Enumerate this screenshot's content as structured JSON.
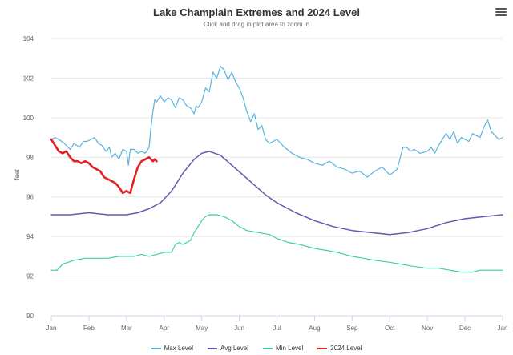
{
  "chart_data": {
    "type": "line",
    "title": "Lake Champlain Extremes and 2024 Level",
    "subtitle": "Click and drag in plot area to zoom in",
    "ylabel": "feet",
    "ylim": [
      90,
      104
    ],
    "yticks": [
      90,
      92,
      94,
      96,
      98,
      100,
      102,
      104
    ],
    "x_tick_labels": [
      "Jan",
      "Feb",
      "Mar",
      "Apr",
      "May",
      "Jun",
      "Jul",
      "Aug",
      "Sep",
      "Oct",
      "Nov",
      "Dec",
      "Jan"
    ],
    "xlim": [
      0,
      12
    ],
    "legend_position": "bottom",
    "series": [
      {
        "name": "Max Level",
        "color": "#5ab4de",
        "width": 1.2,
        "x": [
          0.0,
          0.1,
          0.2,
          0.35,
          0.5,
          0.6,
          0.75,
          0.85,
          0.95,
          1.05,
          1.15,
          1.25,
          1.35,
          1.45,
          1.55,
          1.6,
          1.7,
          1.8,
          1.9,
          2.0,
          2.05,
          2.1,
          2.2,
          2.3,
          2.4,
          2.5,
          2.6,
          2.65,
          2.7,
          2.75,
          2.8,
          2.9,
          3.0,
          3.1,
          3.2,
          3.3,
          3.4,
          3.5,
          3.6,
          3.7,
          3.8,
          3.85,
          3.9,
          4.0,
          4.1,
          4.2,
          4.3,
          4.4,
          4.5,
          4.6,
          4.7,
          4.8,
          4.9,
          5.0,
          5.1,
          5.2,
          5.3,
          5.4,
          5.5,
          5.6,
          5.7,
          5.8,
          5.9,
          6.0,
          6.2,
          6.4,
          6.6,
          6.8,
          7.0,
          7.2,
          7.4,
          7.6,
          7.8,
          8.0,
          8.2,
          8.4,
          8.6,
          8.8,
          9.0,
          9.2,
          9.35,
          9.45,
          9.55,
          9.65,
          9.8,
          10.0,
          10.1,
          10.2,
          10.3,
          10.4,
          10.5,
          10.6,
          10.7,
          10.8,
          10.9,
          11.0,
          11.1,
          11.2,
          11.3,
          11.4,
          11.5,
          11.6,
          11.7,
          11.8,
          11.9,
          12.0
        ],
        "values": [
          98.9,
          99.0,
          98.9,
          98.7,
          98.4,
          98.7,
          98.5,
          98.8,
          98.8,
          98.9,
          99.0,
          98.7,
          98.6,
          98.3,
          98.5,
          98.0,
          98.2,
          97.9,
          98.4,
          98.3,
          97.6,
          98.4,
          98.4,
          98.2,
          98.3,
          98.2,
          98.5,
          99.5,
          100.3,
          100.9,
          100.8,
          101.1,
          100.8,
          101.0,
          100.9,
          100.5,
          101.0,
          100.9,
          100.6,
          100.5,
          100.2,
          100.6,
          100.5,
          100.8,
          101.5,
          101.3,
          102.3,
          102.0,
          102.6,
          102.4,
          101.9,
          102.3,
          101.8,
          101.5,
          101.0,
          100.3,
          99.8,
          100.2,
          99.4,
          99.6,
          98.9,
          98.7,
          98.8,
          98.9,
          98.5,
          98.2,
          98.0,
          97.9,
          97.7,
          97.6,
          97.8,
          97.5,
          97.4,
          97.2,
          97.3,
          97.0,
          97.3,
          97.5,
          97.1,
          97.4,
          98.5,
          98.5,
          98.3,
          98.4,
          98.2,
          98.3,
          98.5,
          98.2,
          98.6,
          98.9,
          99.2,
          98.9,
          99.3,
          98.7,
          99.0,
          98.9,
          98.8,
          99.2,
          99.1,
          99.0,
          99.5,
          99.9,
          99.3,
          99.1,
          98.9,
          99.0
        ]
      },
      {
        "name": "Avg Level",
        "color": "#5e5cb4",
        "width": 1.5,
        "x": [
          0.0,
          0.5,
          1.0,
          1.5,
          2.0,
          2.3,
          2.6,
          2.9,
          3.2,
          3.5,
          3.8,
          4.0,
          4.2,
          4.5,
          4.8,
          5.1,
          5.4,
          5.7,
          6.0,
          6.5,
          7.0,
          7.5,
          8.0,
          8.5,
          9.0,
          9.5,
          10.0,
          10.5,
          11.0,
          11.5,
          12.0
        ],
        "values": [
          95.1,
          95.1,
          95.2,
          95.1,
          95.1,
          95.2,
          95.4,
          95.7,
          96.3,
          97.2,
          97.9,
          98.2,
          98.3,
          98.1,
          97.6,
          97.1,
          96.6,
          96.1,
          95.7,
          95.2,
          94.8,
          94.5,
          94.3,
          94.2,
          94.1,
          94.2,
          94.4,
          94.7,
          94.9,
          95.0,
          95.1
        ]
      },
      {
        "name": "Min Level",
        "color": "#3bd48f",
        "width": 1.2,
        "x": [
          0.0,
          0.15,
          0.3,
          0.6,
          0.9,
          1.2,
          1.5,
          1.8,
          2.0,
          2.2,
          2.4,
          2.6,
          2.8,
          3.0,
          3.1,
          3.2,
          3.3,
          3.4,
          3.5,
          3.6,
          3.7,
          3.8,
          3.9,
          4.0,
          4.1,
          4.2,
          4.4,
          4.6,
          4.8,
          5.0,
          5.2,
          5.5,
          5.8,
          6.0,
          6.3,
          6.6,
          7.0,
          7.3,
          7.6,
          8.0,
          8.3,
          8.6,
          9.0,
          9.3,
          9.6,
          10.0,
          10.3,
          10.6,
          10.9,
          11.0,
          11.2,
          11.4,
          11.6,
          11.8,
          12.0
        ],
        "values": [
          92.3,
          92.3,
          92.6,
          92.8,
          92.9,
          92.9,
          92.9,
          93.0,
          93.0,
          93.0,
          93.1,
          93.0,
          93.1,
          93.2,
          93.2,
          93.2,
          93.6,
          93.7,
          93.6,
          93.7,
          93.8,
          94.2,
          94.5,
          94.8,
          95.0,
          95.1,
          95.1,
          95.0,
          94.8,
          94.5,
          94.3,
          94.2,
          94.1,
          93.9,
          93.7,
          93.6,
          93.4,
          93.3,
          93.2,
          93.0,
          92.9,
          92.8,
          92.7,
          92.6,
          92.5,
          92.4,
          92.4,
          92.3,
          92.2,
          92.2,
          92.2,
          92.3,
          92.3,
          92.3,
          92.3
        ]
      },
      {
        "name": "2024 Level",
        "color": "#e12224",
        "width": 2.6,
        "x": [
          0.0,
          0.1,
          0.2,
          0.3,
          0.4,
          0.5,
          0.6,
          0.7,
          0.8,
          0.9,
          1.0,
          1.1,
          1.2,
          1.3,
          1.4,
          1.5,
          1.6,
          1.7,
          1.8,
          1.9,
          2.0,
          2.1,
          2.2,
          2.3,
          2.4,
          2.5,
          2.6,
          2.7,
          2.75,
          2.8
        ],
        "values": [
          98.9,
          98.6,
          98.3,
          98.2,
          98.3,
          98.0,
          97.8,
          97.8,
          97.7,
          97.8,
          97.7,
          97.5,
          97.4,
          97.3,
          97.0,
          96.9,
          96.8,
          96.7,
          96.5,
          96.2,
          96.3,
          96.2,
          96.9,
          97.5,
          97.8,
          97.9,
          98.0,
          97.8,
          97.9,
          97.8
        ]
      }
    ]
  }
}
